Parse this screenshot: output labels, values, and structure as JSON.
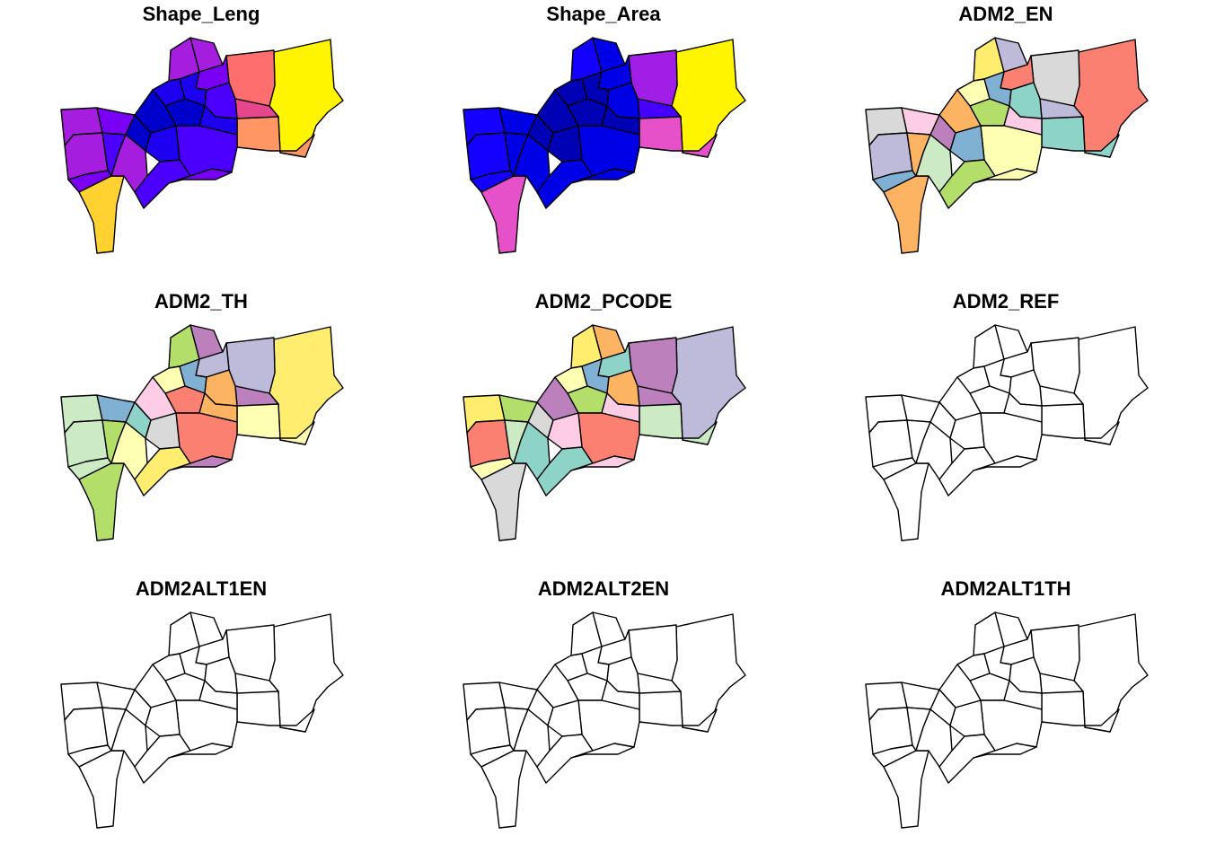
{
  "figure": {
    "panels": [
      {
        "title": "Shape_Leng",
        "fill_mode": "sequential_length"
      },
      {
        "title": "Shape_Area",
        "fill_mode": "sequential_area"
      },
      {
        "title": "ADM2_EN",
        "fill_mode": "categorical_a"
      },
      {
        "title": "ADM2_TH",
        "fill_mode": "categorical_b"
      },
      {
        "title": "ADM2_PCODE",
        "fill_mode": "categorical_c"
      },
      {
        "title": "ADM2_REF",
        "fill_mode": "empty"
      },
      {
        "title": "ADM2ALT1EN",
        "fill_mode": "empty"
      },
      {
        "title": "ADM2ALT2EN",
        "fill_mode": "empty"
      },
      {
        "title": "ADM2ALT1TH",
        "fill_mode": "empty"
      }
    ],
    "palettes": {
      "sequential": [
        "#0000CD",
        "#1E00F0",
        "#4B00FF",
        "#7A00F5",
        "#A51EE0",
        "#C832D2",
        "#E6468C",
        "#FF6E6E",
        "#FF9664",
        "#FFD232",
        "#FFF500"
      ],
      "sequential_area": [
        "#0000B4",
        "#0000E6",
        "#1400FF",
        "#4600FF",
        "#A01EE6",
        "#E650C8",
        "#FFF500"
      ],
      "categorical": [
        "#8DD3C7",
        "#FFFFB3",
        "#BEBADA",
        "#FB8072",
        "#80B1D3",
        "#FDB462",
        "#B3DE69",
        "#FCCDE5",
        "#D9D9D9",
        "#BC80BD",
        "#CCEBC5",
        "#FFED6F"
      ],
      "empty_fill": "#FFFFFF",
      "border": "#000000"
    }
  }
}
